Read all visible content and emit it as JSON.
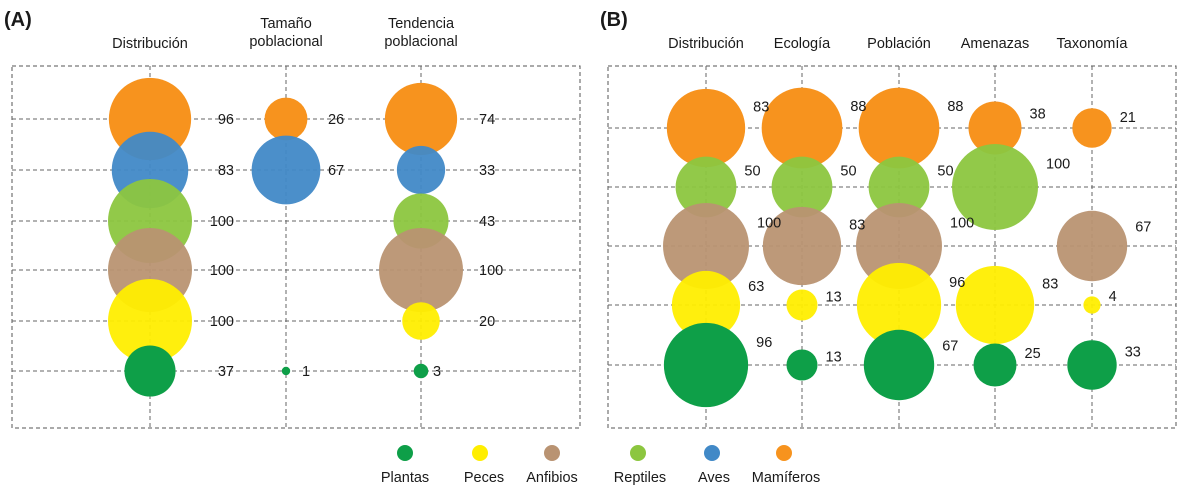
{
  "chart_data": [
    {
      "type": "bubble",
      "panel_label": "(A)",
      "columns": [
        {
          "label_lines": [
            "Distribución"
          ],
          "values": [
            96,
            83,
            100,
            100,
            100,
            37
          ]
        },
        {
          "label_lines": [
            "Tamaño",
            "poblacional"
          ],
          "values": [
            26,
            67,
            null,
            null,
            null,
            1
          ]
        },
        {
          "label_lines": [
            "Tendencia",
            "poblacional"
          ],
          "values": [
            74,
            33,
            43,
            100,
            20,
            3
          ]
        }
      ],
      "row_series": [
        "Mamíferos",
        "Aves",
        "Reptiles",
        "Anfibios",
        "Peces",
        "Plantas"
      ],
      "grid": true
    },
    {
      "type": "bubble",
      "panel_label": "(B)",
      "columns": [
        {
          "label_lines": [
            "Distribución"
          ],
          "values": [
            83,
            null,
            50,
            100,
            63,
            96
          ]
        },
        {
          "label_lines": [
            "Ecología"
          ],
          "values": [
            88,
            null,
            50,
            83,
            13,
            13
          ]
        },
        {
          "label_lines": [
            "Población"
          ],
          "values": [
            88,
            null,
            50,
            100,
            96,
            67
          ]
        },
        {
          "label_lines": [
            "Amenazas"
          ],
          "values": [
            38,
            null,
            100,
            null,
            83,
            25
          ]
        },
        {
          "label_lines": [
            "Taxonomía"
          ],
          "values": [
            21,
            null,
            null,
            67,
            4,
            33
          ]
        }
      ],
      "row_series": [
        "Mamíferos",
        "Aves",
        "Reptiles",
        "Anfibios",
        "Peces",
        "Plantas"
      ],
      "grid": true
    }
  ],
  "legend": {
    "placement": "bottom-center",
    "items": [
      {
        "name": "Plantas",
        "color": "#0e9f48"
      },
      {
        "name": "Peces",
        "color": "#ffee00"
      },
      {
        "name": "Anfibios",
        "color": "#b99372"
      },
      {
        "name": "Reptiles",
        "color": "#8cc63f"
      },
      {
        "name": "Aves",
        "color": "#4189c7"
      },
      {
        "name": "Mamíferos",
        "color": "#f7931e"
      }
    ]
  },
  "series_colors": {
    "Mamíferos": "#f7931e",
    "Aves": "#4189c7",
    "Reptiles": "#8cc63f",
    "Anfibios": "#b99372",
    "Peces": "#ffee00",
    "Plantas": "#0e9f48"
  }
}
